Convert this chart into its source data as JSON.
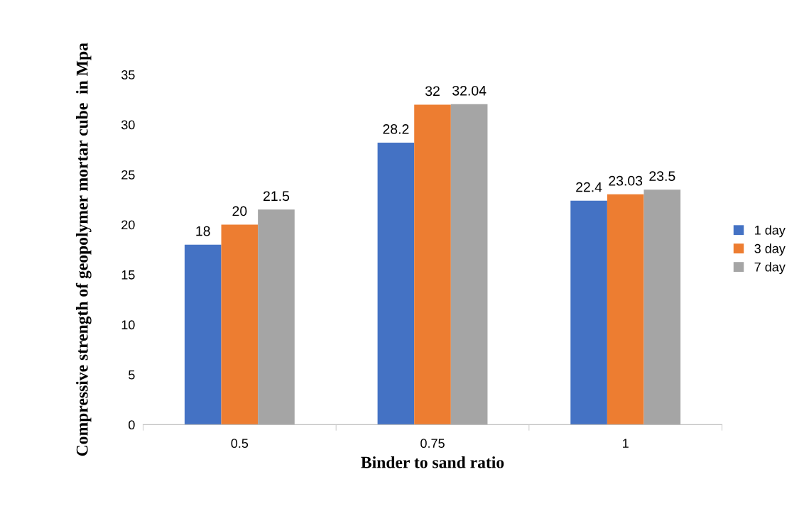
{
  "chart_data": {
    "type": "bar",
    "xlabel": "Binder to sand ratio",
    "ylabel": "Compressive strength of geopolymer mortar cube  in Mpa",
    "categories": [
      "0.5",
      "0.75",
      "1"
    ],
    "series": [
      {
        "name": "1 day",
        "color": "#4472c4",
        "values": [
          18,
          28.2,
          22.4
        ]
      },
      {
        "name": "3 day",
        "color": "#ed7d31",
        "values": [
          20,
          32,
          23.03
        ]
      },
      {
        "name": "7 day",
        "color": "#a5a5a5",
        "values": [
          21.5,
          32.04,
          23.5
        ]
      }
    ],
    "ylim": [
      0,
      35
    ],
    "yticks": [
      0,
      5,
      10,
      15,
      20,
      25,
      30,
      35
    ],
    "grid": false,
    "legend": "right",
    "data_labels": true
  }
}
